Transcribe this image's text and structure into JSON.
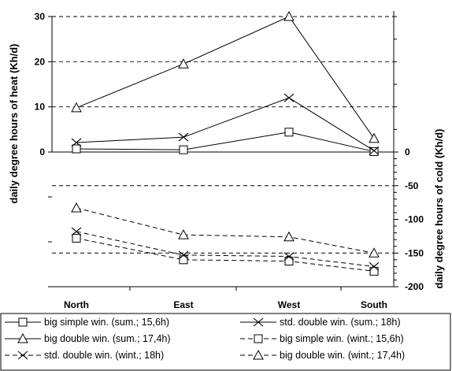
{
  "chart_data": {
    "type": "line",
    "categories": [
      "North",
      "East",
      "West",
      "South"
    ],
    "left_axis": {
      "label": "daily degree hours of heat (Kh/d)",
      "ticks": [
        "0",
        "10",
        "20",
        "30"
      ],
      "range": [
        0,
        30
      ]
    },
    "right_axis": {
      "label": "daily degree hours of cold (Kh/d)",
      "ticks": [
        "0",
        "-50",
        "-100",
        "-150",
        "-200"
      ],
      "range": [
        -200,
        0
      ]
    },
    "series": [
      {
        "name": "big simple win. (sum.; 15,6h)",
        "axis": "left",
        "marker": "square",
        "dash": false,
        "values": [
          0.7,
          0.5,
          4.4,
          0.1
        ]
      },
      {
        "name": "std. double win. (sum.; 18h)",
        "axis": "left",
        "marker": "x",
        "dash": false,
        "values": [
          2.1,
          3.3,
          12.0,
          0.3
        ]
      },
      {
        "name": "big double win. (sum.; 17,4h)",
        "axis": "left",
        "marker": "triangle",
        "dash": false,
        "values": [
          9.8,
          19.5,
          30.0,
          3.0
        ]
      },
      {
        "name": "big simple win. (wint.; 15,6h)",
        "axis": "right",
        "marker": "square",
        "dash": true,
        "values": [
          -128,
          -160,
          -162,
          -177
        ]
      },
      {
        "name": "std. double win. (wint.; 18h)",
        "axis": "right",
        "marker": "x",
        "dash": true,
        "values": [
          -118,
          -153,
          -155,
          -170
        ]
      },
      {
        "name": "big double win. (wint.; 17,4h)",
        "axis": "right",
        "marker": "triangle",
        "dash": true,
        "values": [
          -83,
          -123,
          -126,
          -150
        ]
      }
    ],
    "legend_placement": "bottom",
    "gridlines": "dashed at left-axis ticks and right-axis -50 / -150"
  }
}
